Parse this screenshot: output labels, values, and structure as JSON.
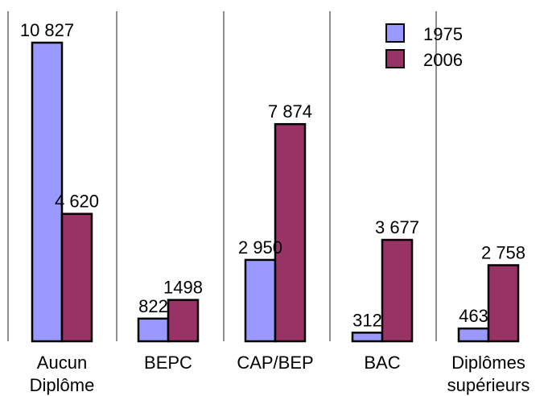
{
  "chart_data": {
    "type": "bar",
    "categories": [
      "Aucun Diplôme",
      "BEPC",
      "CAP/BEP",
      "BAC",
      "Diplômes supérieurs"
    ],
    "category_lines": [
      [
        "Aucun",
        "Diplôme"
      ],
      [
        "BEPC"
      ],
      [
        "CAP/BEP"
      ],
      [
        "BAC"
      ],
      [
        "Diplômes",
        "supérieurs"
      ]
    ],
    "series": [
      {
        "name": "1975",
        "color": "#9999ff",
        "values": [
          10827,
          822,
          2950,
          312,
          463
        ],
        "labels": [
          "10 827",
          "822",
          "2 950",
          "312",
          "463"
        ]
      },
      {
        "name": "2006",
        "color": "#993366",
        "values": [
          4620,
          1498,
          7874,
          3677,
          2758
        ],
        "labels": [
          "4 620",
          "1498",
          "7 874",
          "3 677",
          "2 758"
        ]
      }
    ],
    "ylim": [
      0,
      10827
    ],
    "grid": "vertical separators",
    "legend_position": "top-right",
    "title": "",
    "xlabel": "",
    "ylabel": ""
  }
}
